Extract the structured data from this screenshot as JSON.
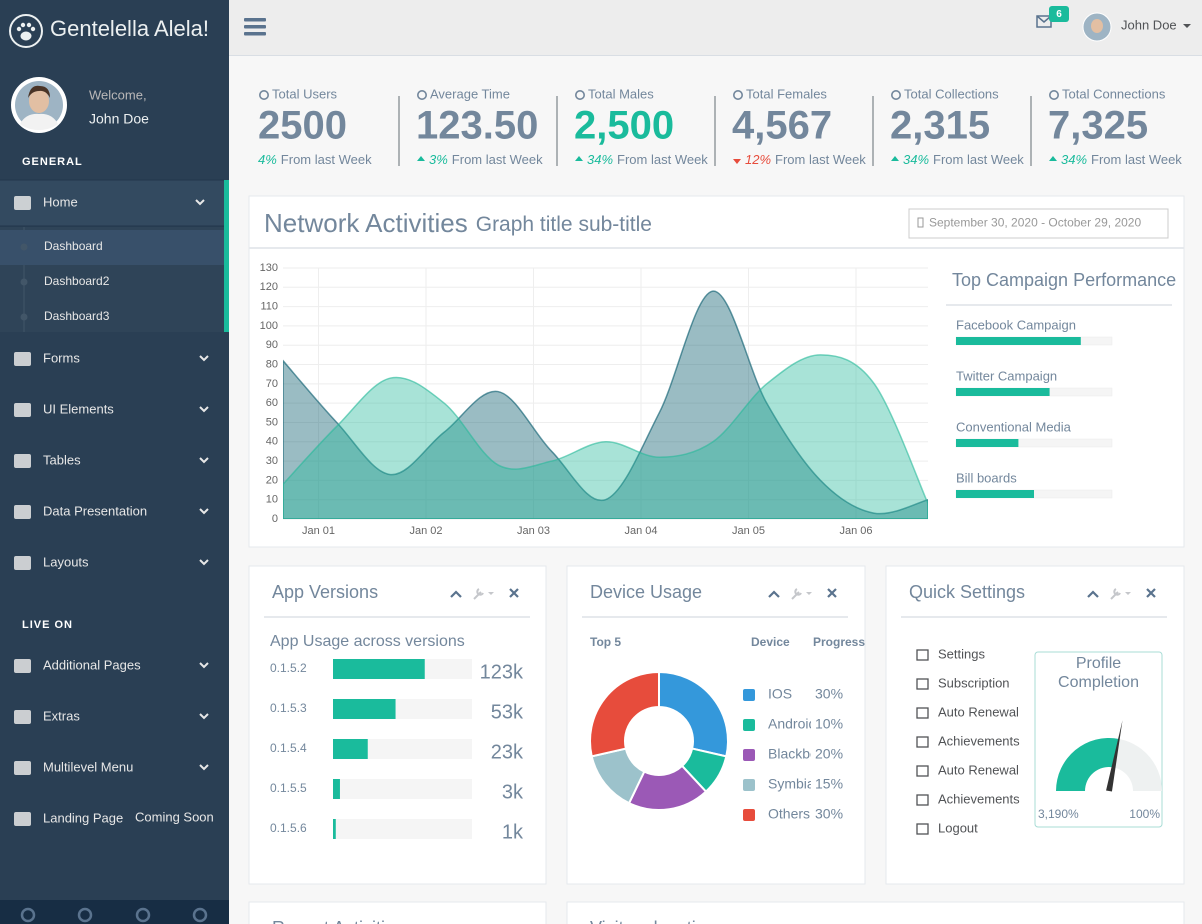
{
  "sidebar": {
    "brand": "Gentelella Alela!",
    "welcome": "Welcome,",
    "user": "John Doe",
    "sections": [
      {
        "title": "GENERAL",
        "items": [
          {
            "label": "Home",
            "active": true,
            "active_child": 0,
            "children": [
              "Dashboard",
              "Dashboard2",
              "Dashboard3"
            ]
          },
          {
            "label": "Forms"
          },
          {
            "label": "UI Elements"
          },
          {
            "label": "Tables"
          },
          {
            "label": "Data Presentation"
          },
          {
            "label": "Layouts"
          }
        ]
      },
      {
        "title": "LIVE ON",
        "items": [
          {
            "label": "Additional Pages"
          },
          {
            "label": "Extras"
          },
          {
            "label": "Multilevel Menu"
          },
          {
            "label": "Landing Page",
            "tag": "Coming Soon"
          }
        ]
      }
    ]
  },
  "topnav": {
    "badge": "6",
    "user": "John Doe"
  },
  "stats": [
    {
      "label": "Total Users",
      "value": "2500",
      "change": "4%",
      "text": "From last Week"
    },
    {
      "label": "Average Time",
      "value": "123.50",
      "change": "3%",
      "text": "From last Week",
      "trend": "up"
    },
    {
      "label": "Total Males",
      "value": "2,500",
      "change": "34%",
      "text": "From last Week",
      "trend": "up",
      "value_color": "#1ABB9C"
    },
    {
      "label": "Total Females",
      "value": "4,567",
      "change": "12%",
      "text": "From last Week",
      "trend": "down"
    },
    {
      "label": "Total Collections",
      "value": "2,315",
      "change": "34%",
      "text": "From last Week",
      "trend": "up"
    },
    {
      "label": "Total Connections",
      "value": "7,325",
      "change": "34%",
      "text": "From last Week",
      "trend": "up"
    }
  ],
  "network": {
    "title": "Network Activities",
    "subtitle": "Graph title sub-title",
    "date_range": "September 30, 2020 - October 29, 2020",
    "chart": {
      "type": "area",
      "x": [
        0.67,
        1.17,
        1.67,
        2.17,
        2.67,
        3.17,
        3.67,
        4.17,
        4.67,
        5.17,
        5.67,
        6.17,
        6.67
      ],
      "xlim": [
        0.67,
        6.67
      ],
      "xticks": [
        {
          "value": 1,
          "label": "Jan 01"
        },
        {
          "value": 2,
          "label": "Jan 02"
        },
        {
          "value": 3,
          "label": "Jan 03"
        },
        {
          "value": 4,
          "label": "Jan 04"
        },
        {
          "value": 5,
          "label": "Jan 05"
        },
        {
          "value": 6,
          "label": "Jan 06"
        }
      ],
      "ylim": [
        0,
        130
      ],
      "yticks": [
        0,
        10,
        20,
        30,
        40,
        50,
        60,
        70,
        80,
        90,
        100,
        110,
        120,
        130
      ],
      "grid": true,
      "series": [
        {
          "color": "#03586A",
          "values": [
            82,
            50,
            23,
            45,
            66,
            35,
            10,
            55,
            118,
            60,
            20,
            3,
            10
          ]
        },
        {
          "color": "#26B99A",
          "values": [
            18,
            48,
            73,
            60,
            28,
            30,
            40,
            32,
            40,
            70,
            85,
            70,
            8
          ]
        }
      ]
    },
    "campaign": {
      "title": "Top Campaign Performance",
      "xlim": [
        0,
        100
      ],
      "color": "#1ABB9C",
      "labels": [
        "Facebook Campaign",
        "Twitter Campaign",
        "Conventional Media",
        "Bill boards"
      ],
      "values": [
        80,
        60,
        40,
        50
      ]
    }
  },
  "app_versions": {
    "title": "App Versions",
    "subtitle": "App Usage across versions",
    "xlim": [
      0,
      100
    ],
    "color": "#1ABB9C",
    "versions": [
      "0.1.5.2",
      "0.1.5.3",
      "0.1.5.4",
      "0.1.5.5",
      "0.1.5.6"
    ],
    "progress": [
      66,
      45,
      25,
      5,
      2
    ],
    "usage": [
      "123k",
      "53k",
      "23k",
      "3k",
      "1k"
    ]
  },
  "device_usage": {
    "title": "Device Usage",
    "headers": [
      "Top 5",
      "Device",
      "Progress"
    ],
    "type": "donut",
    "labels": [
      "IOS",
      "Android",
      "Blackberry",
      "Symbian",
      "Others"
    ],
    "values": [
      30,
      10,
      20,
      15,
      30
    ],
    "value_labels": [
      "30%",
      "10%",
      "20%",
      "15%",
      "30%"
    ],
    "colors": [
      "#3498DB",
      "#1ABB9C",
      "#9B59B6",
      "#9CC2CB",
      "#E74C3C"
    ]
  },
  "quick_settings": {
    "title": "Quick Settings",
    "items": [
      "Settings",
      "Subscription",
      "Auto Renewal",
      "Achievements",
      "Auto Renewal",
      "Achievements",
      "Logout"
    ],
    "profile": {
      "title": "Profile Completion",
      "type": "gauge",
      "value": 56,
      "range": [
        0,
        100
      ],
      "color": "#1ABB9C",
      "min_label": "3,190%",
      "max_label": "100%"
    }
  },
  "bottom_panels": [
    "Recent Activities",
    "Visitors location"
  ]
}
